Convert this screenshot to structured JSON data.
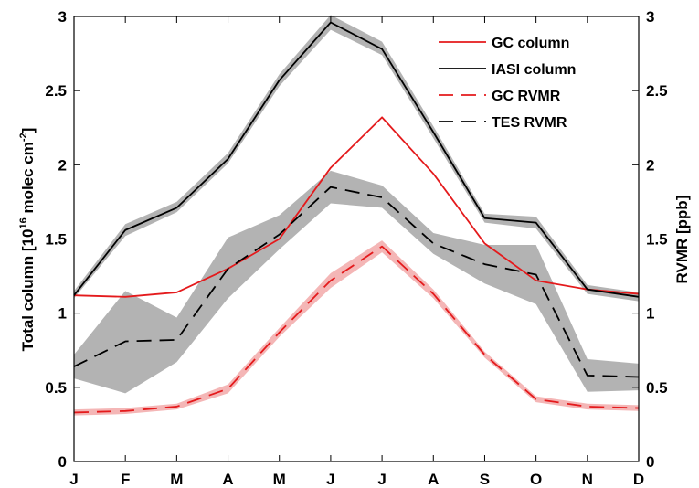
{
  "chart_data": {
    "type": "line",
    "categories": [
      "J",
      "F",
      "M",
      "A",
      "M",
      "J",
      "J",
      "A",
      "S",
      "O",
      "N",
      "D"
    ],
    "y_left": {
      "label_main": "Total column [10",
      "label_sup1": "16",
      "label_mid": " molec cm",
      "label_sup2": "-2",
      "label_end": "]",
      "ylim": [
        0,
        3
      ],
      "ticks": [
        "0",
        "0.5",
        "1",
        "1.5",
        "2",
        "2.5",
        "3"
      ]
    },
    "y_right": {
      "label": "RVMR [ppb]",
      "ylim": [
        0,
        3
      ],
      "ticks": [
        "0",
        "0.5",
        "1",
        "1.5",
        "2",
        "2.5",
        "3"
      ]
    },
    "grid": false,
    "legend_position": "top-right",
    "series": [
      {
        "name": "GC column",
        "color": "#e41a1c",
        "style": "solid",
        "values": [
          1.12,
          1.11,
          1.14,
          1.3,
          1.5,
          1.98,
          2.32,
          1.94,
          1.47,
          1.22,
          1.16,
          1.13
        ]
      },
      {
        "name": "IASI column",
        "color": "#000000",
        "style": "solid",
        "band_color": "#b3b3b3",
        "values": [
          1.12,
          1.56,
          1.71,
          2.04,
          2.57,
          2.96,
          2.78,
          2.22,
          1.64,
          1.61,
          1.16,
          1.11
        ],
        "lower": [
          1.1,
          1.52,
          1.68,
          2.01,
          2.53,
          2.91,
          2.74,
          2.18,
          1.61,
          1.57,
          1.13,
          1.08
        ],
        "upper": [
          1.15,
          1.6,
          1.75,
          2.08,
          2.61,
          3.01,
          2.83,
          2.26,
          1.67,
          1.65,
          1.19,
          1.14
        ]
      },
      {
        "name": "GC RVMR",
        "color": "#e41a1c",
        "style": "dashed",
        "band_color": "#f4b6b6",
        "values": [
          0.33,
          0.34,
          0.37,
          0.49,
          0.87,
          1.22,
          1.45,
          1.13,
          0.72,
          0.42,
          0.37,
          0.36
        ],
        "lower": [
          0.31,
          0.32,
          0.35,
          0.46,
          0.84,
          1.17,
          1.41,
          1.1,
          0.7,
          0.4,
          0.35,
          0.34
        ],
        "upper": [
          0.35,
          0.36,
          0.39,
          0.52,
          0.9,
          1.27,
          1.49,
          1.16,
          0.74,
          0.44,
          0.39,
          0.38
        ]
      },
      {
        "name": "TES RVMR",
        "color": "#000000",
        "style": "dashed",
        "band_color": "#b3b3b3",
        "values": [
          0.64,
          0.81,
          0.82,
          1.3,
          1.53,
          1.85,
          1.78,
          1.47,
          1.33,
          1.26,
          0.58,
          0.57
        ],
        "lower": [
          0.56,
          0.46,
          0.67,
          1.1,
          1.43,
          1.74,
          1.71,
          1.4,
          1.2,
          1.06,
          0.47,
          0.48
        ],
        "upper": [
          0.72,
          1.15,
          0.97,
          1.51,
          1.66,
          1.96,
          1.86,
          1.54,
          1.46,
          1.46,
          0.69,
          0.66
        ]
      }
    ]
  }
}
